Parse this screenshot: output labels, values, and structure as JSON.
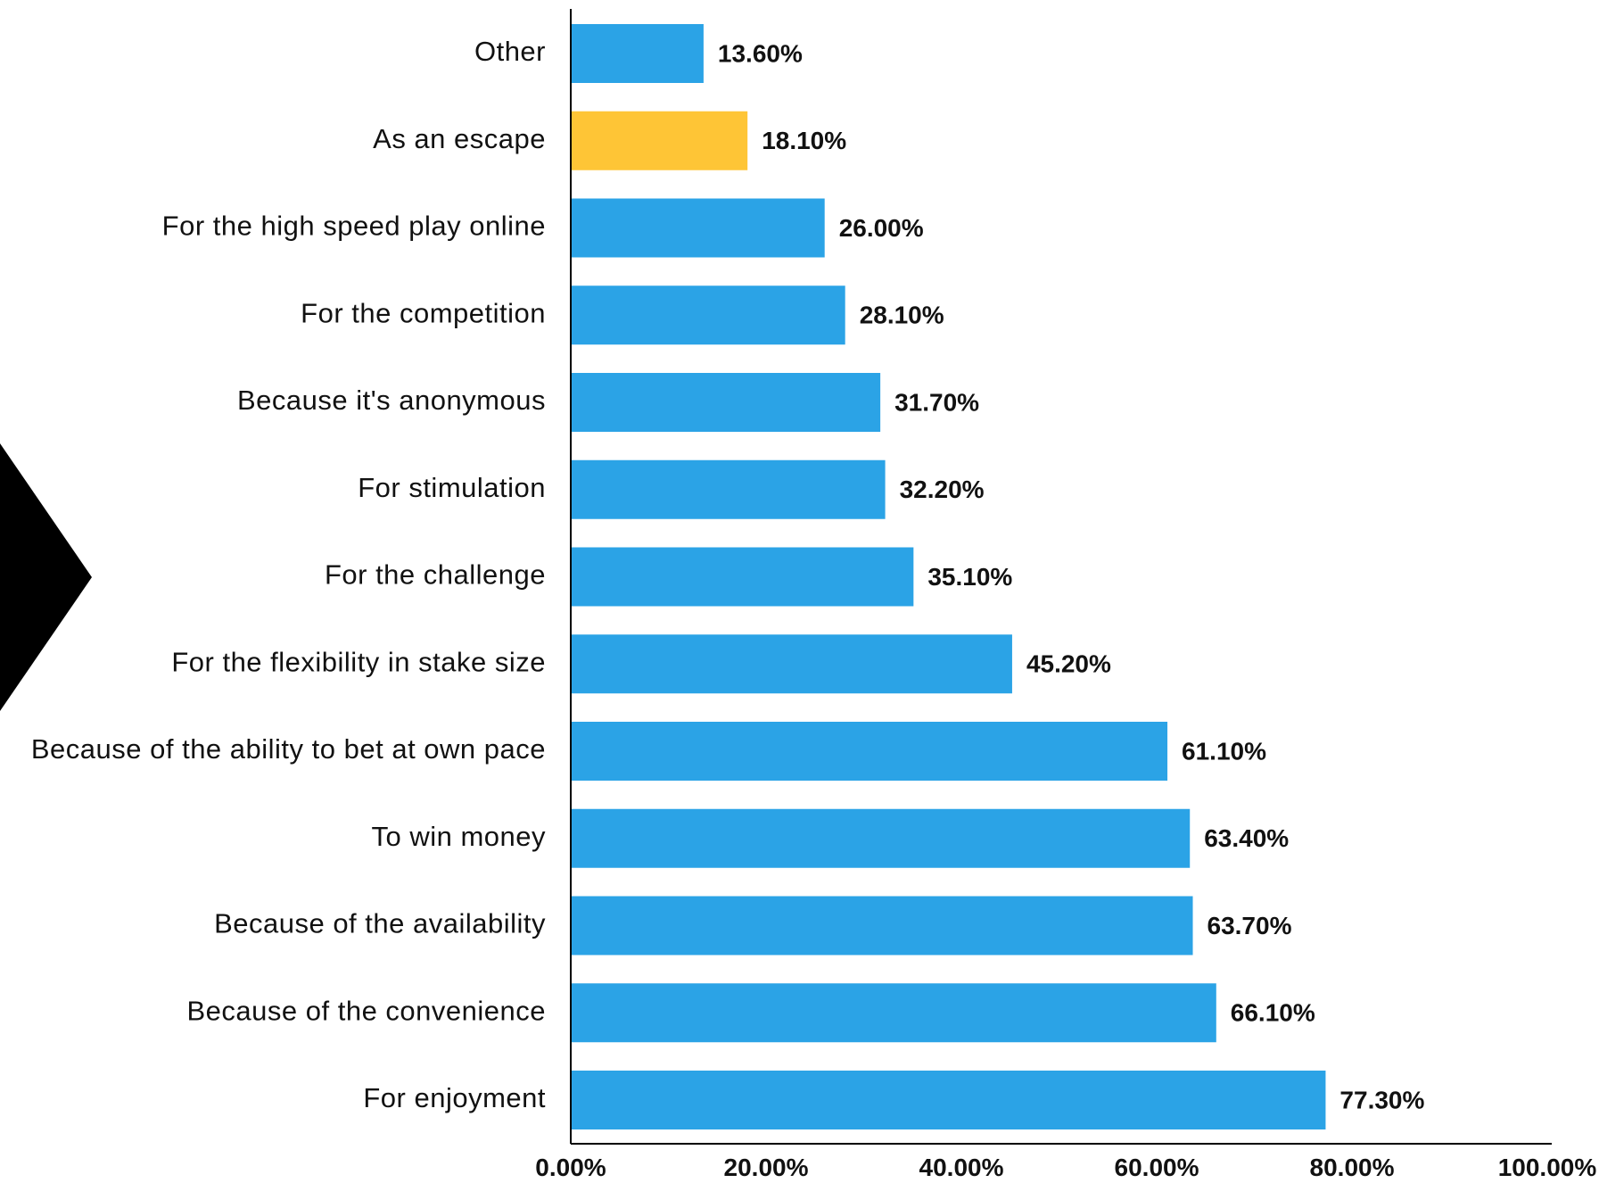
{
  "chart_data": {
    "type": "bar",
    "orientation": "horizontal",
    "categories": [
      "Other",
      "As an escape",
      "For the high speed play online",
      "For the competition",
      "Because it's anonymous",
      "For stimulation",
      "For the challenge",
      "For the flexibility in stake size",
      "Because of the ability to bet at own pace",
      "To win money",
      "Because of the availability",
      "Because of the convenience",
      "For enjoyment"
    ],
    "values": [
      13.6,
      18.1,
      26.0,
      28.1,
      31.7,
      32.2,
      35.1,
      45.2,
      61.1,
      63.4,
      63.7,
      66.1,
      77.3
    ],
    "value_labels": [
      "13.60%",
      "18.10%",
      "26.00%",
      "28.10%",
      "31.70%",
      "32.20%",
      "35.10%",
      "45.20%",
      "61.10%",
      "63.40%",
      "63.70%",
      "66.10%",
      "77.30%"
    ],
    "highlight_index": 1,
    "xlim": [
      0,
      100
    ],
    "xticks": [
      0,
      20,
      40,
      60,
      80,
      100
    ],
    "xtick_labels": [
      "0.00%",
      "20.00%",
      "40.00%",
      "60.00%",
      "80.00%",
      "100.00%"
    ],
    "grid": false,
    "legend": "none",
    "title": "",
    "xlabel": "",
    "ylabel": ""
  },
  "colors": {
    "bar": "#2ba3e6",
    "highlight": "#fec536",
    "text": "#111111",
    "axis": "#000000",
    "chevron": "#000000"
  },
  "decoration": {
    "chevron_icon": "chevron-right-icon"
  }
}
